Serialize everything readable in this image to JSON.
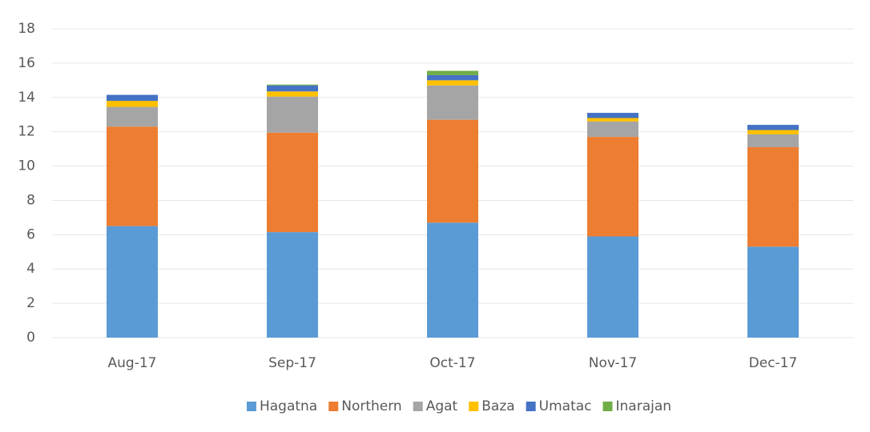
{
  "chart_data": {
    "type": "stacked_bar",
    "categories": [
      "Aug-17",
      "Sep-17",
      "Oct-17",
      "Nov-17",
      "Dec-17"
    ],
    "series": [
      {
        "name": "Hagatna",
        "color": "#5b9bd5",
        "values": [
          6.5,
          6.15,
          6.7,
          5.9,
          5.3
        ]
      },
      {
        "name": "Northern",
        "color": "#ed7d31",
        "values": [
          5.8,
          5.8,
          6.0,
          5.8,
          5.8
        ]
      },
      {
        "name": "Agat",
        "color": "#a5a5a5",
        "values": [
          1.15,
          2.1,
          2.0,
          0.9,
          0.75
        ]
      },
      {
        "name": "Baza",
        "color": "#ffc000",
        "values": [
          0.35,
          0.3,
          0.3,
          0.2,
          0.25
        ]
      },
      {
        "name": "Umatac",
        "color": "#4472c4",
        "values": [
          0.35,
          0.35,
          0.3,
          0.3,
          0.3
        ]
      },
      {
        "name": "Inarajan",
        "color": "#70ad47",
        "values": [
          0,
          0.05,
          0.25,
          0,
          0
        ]
      }
    ],
    "ylim": [
      0,
      18
    ],
    "yticks": [
      0,
      2,
      4,
      6,
      8,
      10,
      12,
      14,
      16,
      18
    ],
    "grid": true,
    "legend": "bottom"
  }
}
